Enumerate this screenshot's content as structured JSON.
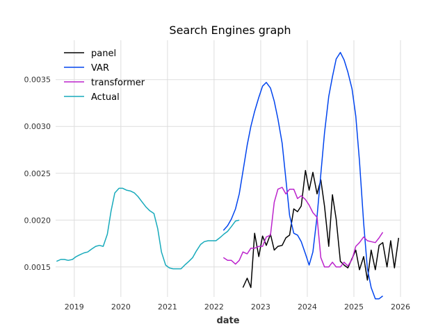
{
  "chart_data": {
    "type": "line",
    "title": "Search Engines graph",
    "xlabel": "date",
    "ylabel": "",
    "xlim": [
      2018.6,
      2026.0
    ],
    "ylim": [
      0.00118,
      0.00392
    ],
    "x_ticks": [
      {
        "value": 2019,
        "label": "2019"
      },
      {
        "value": 2020,
        "label": "2020"
      },
      {
        "value": 2021,
        "label": "2021"
      },
      {
        "value": 2022,
        "label": "2022"
      },
      {
        "value": 2023,
        "label": "2023"
      },
      {
        "value": 2024,
        "label": "2024"
      },
      {
        "value": 2025,
        "label": "2025"
      },
      {
        "value": 2026,
        "label": "2026"
      }
    ],
    "y_ticks": [
      {
        "value": 0.0015,
        "label": "0.0015"
      },
      {
        "value": 0.002,
        "label": "0.0020"
      },
      {
        "value": 0.0025,
        "label": "0.0025"
      },
      {
        "value": 0.003,
        "label": "0.0030"
      },
      {
        "value": 0.0035,
        "label": "0.0035"
      }
    ],
    "grid": true,
    "legend_position": "top-left",
    "series": [
      {
        "name": "panel",
        "color": "#000000",
        "x": [
          2022.62,
          2022.71,
          2022.79,
          2022.87,
          2022.96,
          2023.04,
          2023.12,
          2023.21,
          2023.29,
          2023.37,
          2023.46,
          2023.54,
          2023.62,
          2023.71,
          2023.79,
          2023.87,
          2023.96,
          2024.04,
          2024.12,
          2024.21,
          2024.29,
          2024.37,
          2024.46,
          2024.54,
          2024.62,
          2024.71,
          2024.79,
          2024.87,
          2024.96,
          2025.04,
          2025.12,
          2025.21,
          2025.29,
          2025.37,
          2025.46,
          2025.54,
          2025.62,
          2025.71,
          2025.79,
          2025.87,
          2025.96
        ],
        "y": [
          0.00128,
          0.00138,
          0.00128,
          0.00186,
          0.00161,
          0.00183,
          0.00173,
          0.00185,
          0.00168,
          0.00172,
          0.00173,
          0.00181,
          0.00184,
          0.00212,
          0.00209,
          0.00215,
          0.00253,
          0.00232,
          0.00251,
          0.00228,
          0.00243,
          0.00215,
          0.00172,
          0.00227,
          0.00201,
          0.00156,
          0.00152,
          0.00149,
          0.00159,
          0.00168,
          0.00147,
          0.00161,
          0.00136,
          0.00168,
          0.00147,
          0.00173,
          0.00176,
          0.0015,
          0.00178,
          0.00149,
          0.00181
        ]
      },
      {
        "name": "VAR",
        "color": "#0044ee",
        "x": [
          2022.2,
          2022.29,
          2022.37,
          2022.46,
          2022.54,
          2022.62,
          2022.71,
          2022.79,
          2022.87,
          2022.96,
          2023.04,
          2023.12,
          2023.21,
          2023.29,
          2023.37,
          2023.46,
          2023.54,
          2023.62,
          2023.71,
          2023.79,
          2023.87,
          2023.96,
          2024.04,
          2024.12,
          2024.21,
          2024.29,
          2024.37,
          2024.46,
          2024.54,
          2024.62,
          2024.71,
          2024.79,
          2024.87,
          2024.96,
          2025.04,
          2025.12,
          2025.21,
          2025.29,
          2025.37,
          2025.46,
          2025.54,
          2025.62
        ],
        "y": [
          0.00189,
          0.00194,
          0.00201,
          0.00212,
          0.00228,
          0.00252,
          0.0028,
          0.003,
          0.00316,
          0.00331,
          0.00343,
          0.00347,
          0.00341,
          0.00327,
          0.00308,
          0.00282,
          0.00244,
          0.00205,
          0.00186,
          0.00184,
          0.00177,
          0.00164,
          0.00152,
          0.00166,
          0.00204,
          0.00249,
          0.00293,
          0.00332,
          0.00353,
          0.00372,
          0.00379,
          0.00371,
          0.00358,
          0.0034,
          0.00311,
          0.00263,
          0.00197,
          0.00148,
          0.00128,
          0.00116,
          0.00116,
          0.00119
        ]
      },
      {
        "name": "transformer",
        "color": "#bb22cc",
        "x": [
          2022.2,
          2022.29,
          2022.37,
          2022.46,
          2022.54,
          2022.62,
          2022.71,
          2022.79,
          2022.87,
          2022.96,
          2023.04,
          2023.12,
          2023.21,
          2023.29,
          2023.37,
          2023.46,
          2023.54,
          2023.62,
          2023.71,
          2023.79,
          2023.87,
          2023.96,
          2024.04,
          2024.12,
          2024.21,
          2024.29,
          2024.37,
          2024.46,
          2024.54,
          2024.62,
          2024.71,
          2024.79,
          2024.87,
          2024.96,
          2025.04,
          2025.12,
          2025.21,
          2025.29,
          2025.37,
          2025.46,
          2025.54,
          2025.62
        ],
        "y": [
          0.0016,
          0.00157,
          0.00157,
          0.00153,
          0.00157,
          0.00166,
          0.00164,
          0.0017,
          0.0017,
          0.00172,
          0.00172,
          0.00182,
          0.00184,
          0.00219,
          0.00233,
          0.00235,
          0.00228,
          0.00233,
          0.00233,
          0.00223,
          0.00226,
          0.00222,
          0.00216,
          0.00208,
          0.00203,
          0.0016,
          0.0015,
          0.0015,
          0.00155,
          0.0015,
          0.0015,
          0.00155,
          0.00151,
          0.00158,
          0.00172,
          0.00176,
          0.00182,
          0.00178,
          0.00177,
          0.00176,
          0.00181,
          0.00187
        ]
      },
      {
        "name": "Actual",
        "color": "#17aabb",
        "x": [
          2018.62,
          2018.71,
          2018.79,
          2018.87,
          2018.96,
          2019.04,
          2019.12,
          2019.21,
          2019.29,
          2019.37,
          2019.46,
          2019.54,
          2019.62,
          2019.71,
          2019.79,
          2019.87,
          2019.96,
          2020.04,
          2020.12,
          2020.21,
          2020.29,
          2020.37,
          2020.46,
          2020.54,
          2020.62,
          2020.71,
          2020.79,
          2020.87,
          2020.96,
          2021.04,
          2021.12,
          2021.21,
          2021.29,
          2021.37,
          2021.46,
          2021.54,
          2021.62,
          2021.71,
          2021.79,
          2021.87,
          2021.96,
          2022.04,
          2022.12,
          2022.21,
          2022.29,
          2022.37,
          2022.46,
          2022.54
        ],
        "y": [
          0.00156,
          0.00158,
          0.00158,
          0.00157,
          0.00158,
          0.00161,
          0.00163,
          0.00165,
          0.00166,
          0.00169,
          0.00172,
          0.00173,
          0.00172,
          0.00185,
          0.0021,
          0.00229,
          0.00234,
          0.00234,
          0.00232,
          0.00231,
          0.00229,
          0.00225,
          0.00219,
          0.00214,
          0.0021,
          0.00207,
          0.00191,
          0.00166,
          0.00152,
          0.00149,
          0.00148,
          0.00148,
          0.00148,
          0.00152,
          0.00156,
          0.0016,
          0.00167,
          0.00174,
          0.00177,
          0.00178,
          0.00178,
          0.00178,
          0.00181,
          0.00185,
          0.00188,
          0.00193,
          0.00199,
          0.002
        ]
      }
    ]
  }
}
